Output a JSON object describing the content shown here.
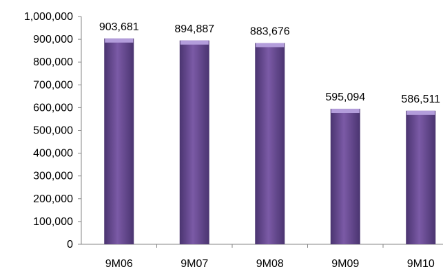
{
  "chart_data": {
    "type": "bar",
    "title": "",
    "xlabel": "",
    "ylabel": "",
    "categories": [
      "9M06",
      "9M07",
      "9M08",
      "9M09",
      "9M10"
    ],
    "values": [
      903681,
      894887,
      883676,
      595094,
      586511
    ],
    "data_labels": [
      "903,681",
      "894,887",
      "883,676",
      "595,094",
      "586,511"
    ],
    "ylim": [
      0,
      1000000
    ],
    "yticks": [
      0,
      100000,
      200000,
      300000,
      400000,
      500000,
      600000,
      700000,
      800000,
      900000,
      1000000
    ],
    "ytick_labels": [
      "0",
      "100,000",
      "200,000",
      "300,000",
      "400,000",
      "500,000",
      "600,000",
      "700,000",
      "800,000",
      "900,000",
      "1,000,000"
    ],
    "grid": false,
    "legend": "none",
    "bar_color": "#7b5aa6",
    "bar_highlight_color": "#b39ddb",
    "bar_shadow_color": "#4a3470"
  }
}
